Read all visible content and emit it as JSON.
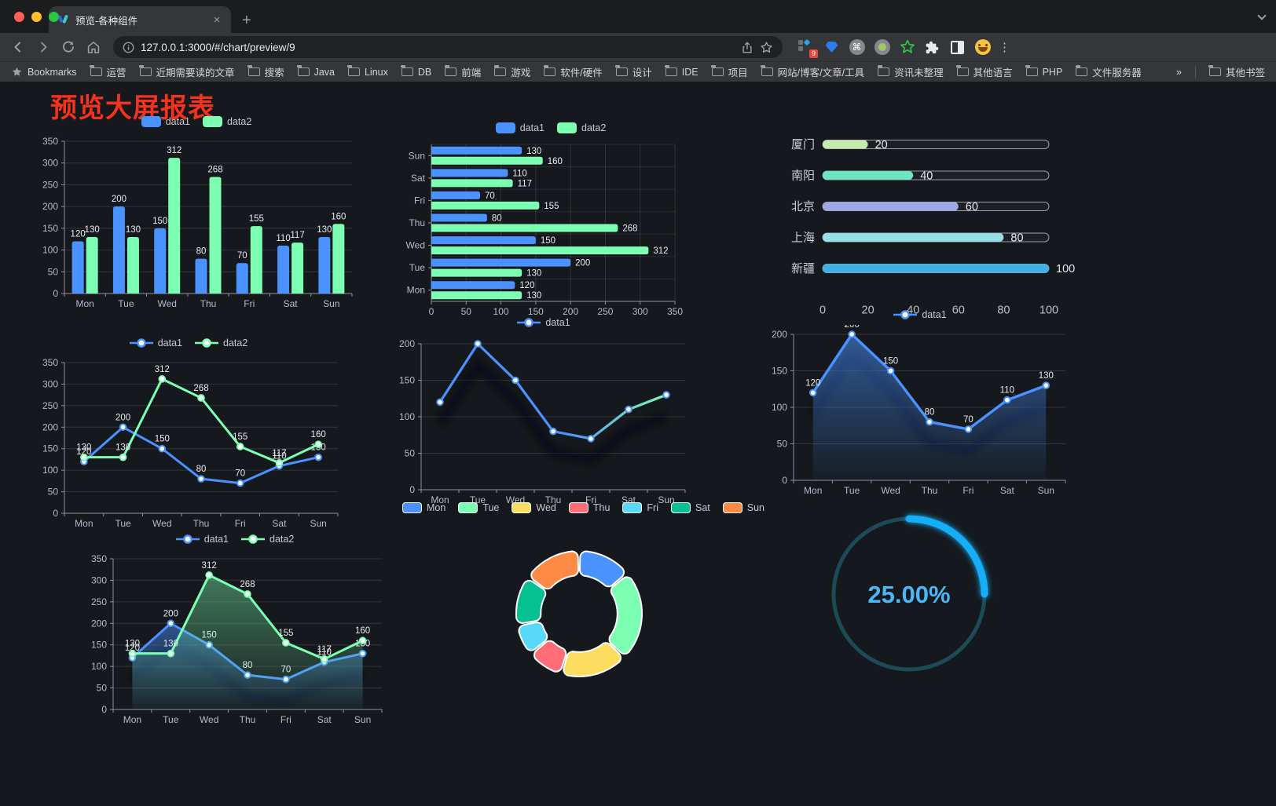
{
  "browser": {
    "tab": {
      "title": "预览-各种组件",
      "close_glyph": "×",
      "new_tab_glyph": "+"
    },
    "url": "127.0.0.1:3000/#/chart/preview/9",
    "menu_glyph": "⋮",
    "extension_badge": "9",
    "command_glyph": "⌘",
    "bookmarks": {
      "label": "Bookmarks",
      "folders": [
        "运营",
        "近期需要读的文章",
        "搜索",
        "Java",
        "Linux",
        "DB",
        "前端",
        "游戏",
        "软件/硬件",
        "设计",
        "IDE",
        "项目",
        "网站/博客/文章/工具",
        "资讯未整理",
        "其他语言",
        "PHP",
        "文件服务器"
      ],
      "overflow_glyph": "»",
      "other_label": "其他书签"
    }
  },
  "page": {
    "title": "预览大屏报表",
    "title_color": "#f5321c",
    "background": "#15181c"
  },
  "chart_data": [
    {
      "id": "grouped-bar",
      "type": "bar",
      "categories": [
        "Mon",
        "Tue",
        "Wed",
        "Thu",
        "Fri",
        "Sat",
        "Sun"
      ],
      "series": [
        {
          "name": "data1",
          "color": "#4992ff",
          "values": [
            120,
            200,
            150,
            80,
            70,
            110,
            130
          ]
        },
        {
          "name": "data2",
          "color": "#7cffb2",
          "values": [
            130,
            130,
            312,
            268,
            155,
            117,
            160
          ]
        }
      ],
      "ylim": [
        0,
        350
      ],
      "ystep": 50,
      "show_labels": true,
      "legend_position": "top",
      "grid": true
    },
    {
      "id": "horizontal-bar",
      "type": "bar-horizontal",
      "categories": [
        "Mon",
        "Tue",
        "Wed",
        "Thu",
        "Fri",
        "Sat",
        "Sun"
      ],
      "series": [
        {
          "name": "data1",
          "color": "#4992ff",
          "values": [
            120,
            200,
            150,
            80,
            70,
            110,
            130
          ]
        },
        {
          "name": "data2",
          "color": "#7cffb2",
          "values": [
            130,
            130,
            312,
            268,
            155,
            117,
            160
          ]
        }
      ],
      "xlim": [
        0,
        350
      ],
      "xstep": 50,
      "show_labels": true,
      "legend_position": "top",
      "grid": true
    },
    {
      "id": "city-progress",
      "type": "progress",
      "max": 100,
      "xticks": [
        0,
        20,
        40,
        60,
        80,
        100
      ],
      "items": [
        {
          "label": "厦门",
          "value": 20,
          "color": "#c4ebad"
        },
        {
          "label": "南阳",
          "value": 40,
          "color": "#6be6c1"
        },
        {
          "label": "北京",
          "value": 60,
          "color": "#a0a7e6"
        },
        {
          "label": "上海",
          "value": 80,
          "color": "#96dee8"
        },
        {
          "label": "新疆",
          "value": 100,
          "color": "#3fb1e3"
        }
      ]
    },
    {
      "id": "two-line",
      "type": "line",
      "categories": [
        "Mon",
        "Tue",
        "Wed",
        "Thu",
        "Fri",
        "Sat",
        "Sun"
      ],
      "series": [
        {
          "name": "data1",
          "color": "#4992ff",
          "values": [
            120,
            200,
            150,
            80,
            70,
            110,
            130
          ]
        },
        {
          "name": "data2",
          "color": "#7cffb2",
          "values": [
            130,
            130,
            312,
            268,
            155,
            117,
            160
          ]
        }
      ],
      "ylim": [
        0,
        350
      ],
      "ystep": 50,
      "show_labels": true,
      "legend_position": "top",
      "grid": true
    },
    {
      "id": "gradient-line",
      "type": "line-gradient",
      "categories": [
        "Mon",
        "Tue",
        "Wed",
        "Thu",
        "Fri",
        "Sat",
        "Sun"
      ],
      "series": [
        {
          "name": "data1",
          "color": "#4992ff",
          "gradient": [
            "#4992ff",
            "#7cffb2"
          ],
          "values": [
            120,
            200,
            150,
            80,
            70,
            110,
            130
          ]
        }
      ],
      "ylim": [
        0,
        200
      ],
      "ystep": 50,
      "show_labels": false,
      "legend_position": "top",
      "grid": true
    },
    {
      "id": "area-line",
      "type": "area",
      "categories": [
        "Mon",
        "Tue",
        "Wed",
        "Thu",
        "Fri",
        "Sat",
        "Sun"
      ],
      "series": [
        {
          "name": "data1",
          "color": "#4992ff",
          "values": [
            120,
            200,
            150,
            80,
            70,
            110,
            130
          ]
        }
      ],
      "ylim": [
        0,
        200
      ],
      "ystep": 50,
      "show_labels": true,
      "legend_position": "top",
      "grid": true
    },
    {
      "id": "two-line-area",
      "type": "line-area",
      "categories": [
        "Mon",
        "Tue",
        "Wed",
        "Thu",
        "Fri",
        "Sat",
        "Sun"
      ],
      "series": [
        {
          "name": "data1",
          "color": "#4992ff",
          "values": [
            120,
            200,
            150,
            80,
            70,
            110,
            130
          ]
        },
        {
          "name": "data2",
          "color": "#7cffb2",
          "values": [
            130,
            130,
            312,
            268,
            155,
            117,
            160
          ]
        }
      ],
      "ylim": [
        0,
        350
      ],
      "ystep": 50,
      "show_labels": true,
      "legend_position": "top",
      "grid": true
    },
    {
      "id": "week-donut",
      "type": "pie",
      "categories": [
        "Mon",
        "Tue",
        "Wed",
        "Thu",
        "Fri",
        "Sat",
        "Sun"
      ],
      "values": [
        120,
        200,
        150,
        80,
        70,
        110,
        130
      ],
      "colors": [
        "#4992ff",
        "#7cffb2",
        "#fddd60",
        "#ff6e76",
        "#58d9f9",
        "#05c091",
        "#ff8a45"
      ],
      "inner_radius_ratio": 0.61,
      "border_color": "#ffffff",
      "legend_position": "top"
    },
    {
      "id": "percent-gauge",
      "type": "gauge",
      "value": 25,
      "max": 100,
      "label": "25.00%",
      "color": "#18aef8",
      "track_color": "#1d4a57",
      "text_color": "#48b9f8"
    }
  ]
}
